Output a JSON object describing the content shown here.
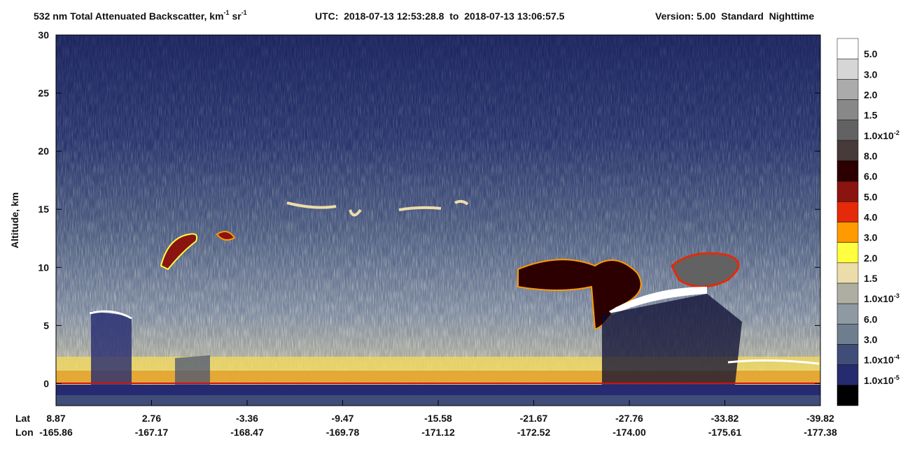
{
  "chart_data": {
    "type": "curtain",
    "title_parts": [
      "532 nm Total Attenuated Backscatter, km",
      "-1",
      " sr",
      "-1"
    ],
    "utc": "UTC:  2018-07-13 12:53:28.8  to  2018-07-13 13:06:57.5",
    "version": "Version: 5.00  Standard  Nighttime",
    "y_label": "Altitude, km",
    "ylim": [
      -1.9,
      30
    ],
    "yticks": [
      0,
      5,
      10,
      15,
      20,
      25,
      30
    ],
    "x_row_labels": [
      "Lat",
      "Lon"
    ],
    "lat": [
      "8.87",
      "2.76",
      "-3.36",
      "-9.47",
      "-15.58",
      "-21.67",
      "-27.76",
      "-33.82",
      "-39.82"
    ],
    "lon": [
      "-165.86",
      "-167.17",
      "-168.47",
      "-169.78",
      "-171.12",
      "-172.52",
      "-174.00",
      "-175.61",
      "-177.38"
    ],
    "surface_color": "#d01010",
    "colorbar": {
      "colors": [
        "#ffffff",
        "#d6d6d6",
        "#ababab",
        "#888888",
        "#626262",
        "#463b38",
        "#2c0000",
        "#8a1410",
        "#e42a08",
        "#ff9a00",
        "#ffff40",
        "#ecdcaa",
        "#aeaea2",
        "#8e99a1",
        "#6f7e8e",
        "#3f4d78",
        "#262a6e",
        "#000000"
      ],
      "labels": [
        {
          "text": "5.0"
        },
        {
          "text": "3.0"
        },
        {
          "text": "2.0"
        },
        {
          "text": "1.5"
        },
        {
          "text": "1.0x10",
          "sup": "-2"
        },
        {
          "text": "8.0"
        },
        {
          "text": "6.0"
        },
        {
          "text": "5.0"
        },
        {
          "text": "4.0"
        },
        {
          "text": "3.0"
        },
        {
          "text": "2.0"
        },
        {
          "text": "1.5"
        },
        {
          "text": "1.0x10",
          "sup": "-3"
        },
        {
          "text": "6.0"
        },
        {
          "text": "3.0"
        },
        {
          "text": "1.0x10",
          "sup": "-4"
        },
        {
          "text": "1.0x10",
          "sup": "-5"
        }
      ]
    }
  }
}
